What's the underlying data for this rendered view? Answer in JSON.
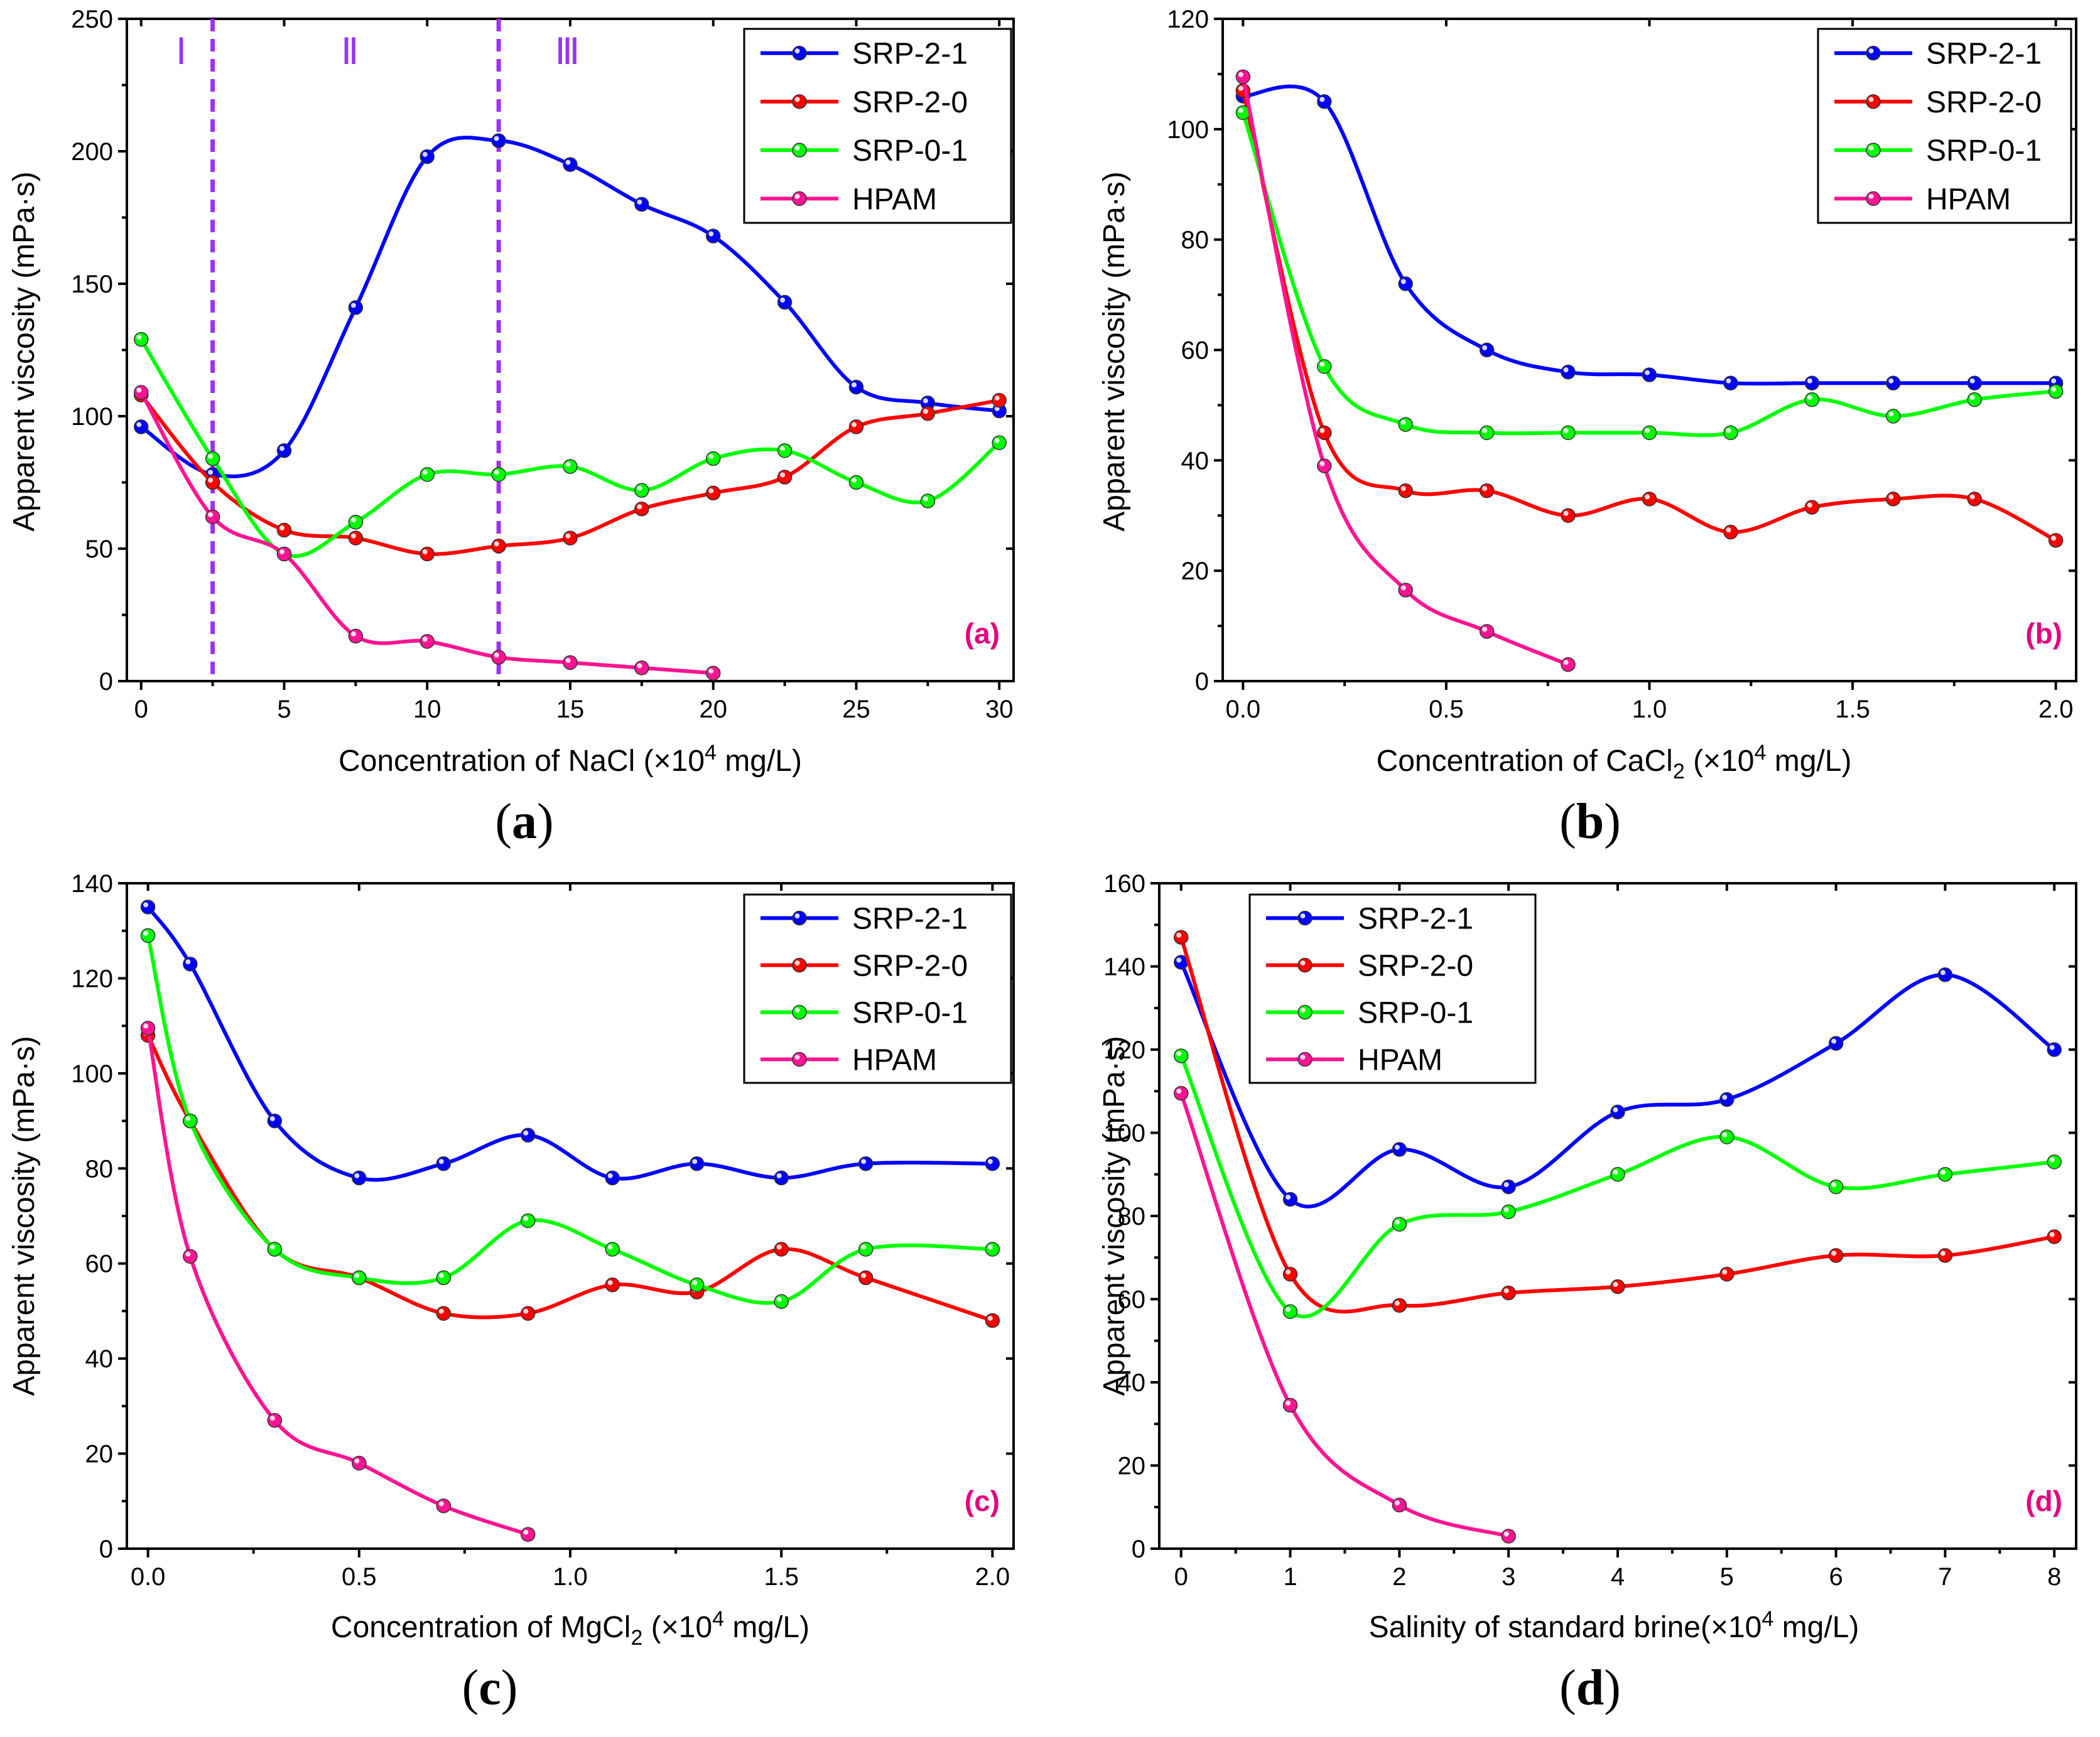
{
  "colors": {
    "SRP-2-1": "#0000ff",
    "SRP-2-0": "#ff0000",
    "SRP-0-1": "#00ff00",
    "HPAM": "#ff1493",
    "region": "#9b30ff",
    "tag": "#e4007f"
  },
  "chart_data": [
    {
      "id": "a",
      "type": "line",
      "tag": "(a)",
      "caption": "a",
      "xlabel": {
        "pre": "Concentration of NaCl (×10",
        "sup": "4",
        "post": " mg/L)"
      },
      "ylabel": "Apparent viscosity (mPa·s)",
      "xlim": [
        -0.5,
        30.5
      ],
      "ylim": [
        0,
        250
      ],
      "xticks": [
        0,
        5,
        10,
        15,
        20,
        25,
        30
      ],
      "xtick_labels": [
        "0",
        "5",
        "10",
        "15",
        "20",
        "25",
        "30"
      ],
      "yticks": [
        0,
        50,
        100,
        150,
        200,
        250
      ],
      "ytick_labels": [
        "0",
        "50",
        "100",
        "150",
        "200",
        "250"
      ],
      "legend_position": "top-right",
      "region_lines": [
        2.5,
        12.5
      ],
      "region_labels": [
        {
          "x": 1.4,
          "text": "Ⅰ"
        },
        {
          "x": 7.3,
          "text": "Ⅱ"
        },
        {
          "x": 14.9,
          "text": "Ⅲ"
        }
      ],
      "series": [
        {
          "name": "SRP-2-1",
          "x": [
            0,
            2.5,
            5,
            7.5,
            10,
            12.5,
            15,
            17.5,
            20,
            22.5,
            25,
            27.5,
            30
          ],
          "y": [
            96,
            78,
            87,
            141,
            198,
            204,
            195,
            180,
            168,
            143,
            111,
            105,
            102
          ]
        },
        {
          "name": "SRP-2-0",
          "x": [
            0,
            2.5,
            5,
            7.5,
            10,
            12.5,
            15,
            17.5,
            20,
            22.5,
            25,
            27.5,
            30
          ],
          "y": [
            108,
            75,
            57,
            54,
            48,
            51,
            54,
            65,
            71,
            77,
            96,
            101,
            106
          ]
        },
        {
          "name": "SRP-0-1",
          "x": [
            0,
            2.5,
            5,
            7.5,
            10,
            12.5,
            15,
            17.5,
            20,
            22.5,
            25,
            27.5,
            30
          ],
          "y": [
            129,
            84,
            48,
            60,
            78,
            78,
            81,
            72,
            84,
            87,
            75,
            68,
            90
          ]
        },
        {
          "name": "HPAM",
          "x": [
            0,
            2.5,
            5,
            7.5,
            10,
            12.5,
            15,
            17.5,
            20
          ],
          "y": [
            109,
            62,
            48,
            17,
            15,
            9,
            7,
            5,
            3
          ]
        }
      ]
    },
    {
      "id": "b",
      "type": "line",
      "tag": "(b)",
      "caption": "b",
      "xlabel": {
        "pre": "Concentration of CaCl",
        "sub": "2",
        "mid": " (×10",
        "sup": "4",
        "post": " mg/L)"
      },
      "ylabel": "Apparent viscosity (mPa·s)",
      "xlim": [
        -0.05,
        2.05
      ],
      "ylim": [
        0,
        120
      ],
      "xticks": [
        0,
        0.5,
        1,
        1.5,
        2
      ],
      "xtick_labels": [
        "0.0",
        "0.5",
        "1.0",
        "1.5",
        "2.0"
      ],
      "yticks": [
        0,
        20,
        40,
        60,
        80,
        100,
        120
      ],
      "ytick_labels": [
        "0",
        "20",
        "40",
        "60",
        "80",
        "100",
        "120"
      ],
      "legend_position": "top-right",
      "series": [
        {
          "name": "SRP-2-1",
          "x": [
            0,
            0.2,
            0.4,
            0.6,
            0.8,
            1.0,
            1.2,
            1.4,
            1.6,
            1.8,
            2.0
          ],
          "y": [
            106,
            105,
            72,
            60,
            56,
            55.5,
            54,
            54,
            54,
            54,
            54
          ]
        },
        {
          "name": "SRP-2-0",
          "x": [
            0,
            0.2,
            0.4,
            0.6,
            0.8,
            1.0,
            1.2,
            1.4,
            1.6,
            1.8,
            2.0
          ],
          "y": [
            107,
            45,
            34.5,
            34.5,
            30,
            33,
            27,
            31.5,
            33,
            33,
            25.5
          ]
        },
        {
          "name": "SRP-0-1",
          "x": [
            0,
            0.2,
            0.4,
            0.6,
            0.8,
            1.0,
            1.2,
            1.4,
            1.6,
            1.8,
            2.0
          ],
          "y": [
            103,
            57,
            46.5,
            45,
            45,
            45,
            45,
            51,
            48,
            51,
            52.5
          ]
        },
        {
          "name": "HPAM",
          "x": [
            0,
            0.2,
            0.4,
            0.6,
            0.8
          ],
          "y": [
            109.5,
            39,
            16.5,
            9,
            3
          ]
        }
      ]
    },
    {
      "id": "c",
      "type": "line",
      "tag": "(c)",
      "caption": "c",
      "xlabel": {
        "pre": "Concentration of MgCl",
        "sub": "2",
        "mid": " (×10",
        "sup": "4",
        "post": " mg/L)"
      },
      "ylabel": "Apparent viscosity (mPa·s)",
      "xlim": [
        -0.05,
        2.05
      ],
      "ylim": [
        0,
        140
      ],
      "xticks": [
        0,
        0.5,
        1,
        1.5,
        2
      ],
      "xtick_labels": [
        "0.0",
        "0.5",
        "1.0",
        "1.5",
        "2.0"
      ],
      "yticks": [
        0,
        20,
        40,
        60,
        80,
        100,
        120,
        140
      ],
      "ytick_labels": [
        "0",
        "20",
        "40",
        "60",
        "80",
        "100",
        "120",
        "140"
      ],
      "legend_position": "top-right",
      "series": [
        {
          "name": "SRP-2-1",
          "x": [
            0,
            0.1,
            0.3,
            0.5,
            0.7,
            0.9,
            1.1,
            1.3,
            1.5,
            1.7,
            2.0
          ],
          "y": [
            135,
            123,
            90,
            78,
            81,
            87,
            78,
            81,
            78,
            81,
            81
          ]
        },
        {
          "name": "SRP-2-0",
          "x": [
            0,
            0.1,
            0.3,
            0.5,
            0.7,
            0.9,
            1.1,
            1.3,
            1.5,
            1.7,
            2.0
          ],
          "y": [
            108,
            90,
            63,
            57,
            49.5,
            49.5,
            55.5,
            54,
            63,
            57,
            48
          ]
        },
        {
          "name": "SRP-0-1",
          "x": [
            0,
            0.1,
            0.3,
            0.5,
            0.7,
            0.9,
            1.1,
            1.3,
            1.5,
            1.7,
            2.0
          ],
          "y": [
            129,
            90,
            63,
            57,
            57,
            69,
            63,
            55.5,
            52,
            63,
            63
          ]
        },
        {
          "name": "HPAM",
          "x": [
            0,
            0.1,
            0.3,
            0.5,
            0.7,
            0.9
          ],
          "y": [
            109.5,
            61.5,
            27,
            18,
            9,
            3
          ]
        }
      ]
    },
    {
      "id": "d",
      "type": "line",
      "tag": "(d)",
      "caption": "d",
      "xlabel": {
        "pre": "Salinity of standard brine(×10",
        "sup": "4",
        "post": " mg/L)"
      },
      "ylabel": "Apparent viscosity (mPa·s)",
      "xlim": [
        -0.2,
        8.2
      ],
      "ylim": [
        0,
        160
      ],
      "xticks": [
        0,
        1,
        2,
        3,
        4,
        5,
        6,
        7,
        8
      ],
      "xtick_labels": [
        "0",
        "1",
        "2",
        "3",
        "4",
        "5",
        "6",
        "7",
        "8"
      ],
      "yticks": [
        0,
        20,
        40,
        60,
        80,
        100,
        120,
        140,
        160
      ],
      "ytick_labels": [
        "0",
        "20",
        "40",
        "60",
        "80",
        "100",
        "120",
        "140",
        "160"
      ],
      "legend_position": "top-left",
      "series": [
        {
          "name": "SRP-2-1",
          "x": [
            0,
            1,
            2,
            3,
            4,
            5,
            6,
            7,
            8
          ],
          "y": [
            141,
            84,
            96,
            87,
            105,
            108,
            121.5,
            138,
            120
          ]
        },
        {
          "name": "SRP-2-0",
          "x": [
            0,
            1,
            2,
            3,
            4,
            5,
            6,
            7,
            8
          ],
          "y": [
            147,
            66,
            58.5,
            61.5,
            63,
            66,
            70.5,
            70.5,
            75
          ]
        },
        {
          "name": "SRP-0-1",
          "x": [
            0,
            1,
            2,
            3,
            4,
            5,
            6,
            7,
            8
          ],
          "y": [
            118.5,
            57,
            78,
            81,
            90,
            99,
            87,
            90,
            93
          ]
        },
        {
          "name": "HPAM",
          "x": [
            0,
            1,
            2,
            3
          ],
          "y": [
            109.5,
            34.5,
            10.5,
            3
          ]
        }
      ]
    }
  ]
}
